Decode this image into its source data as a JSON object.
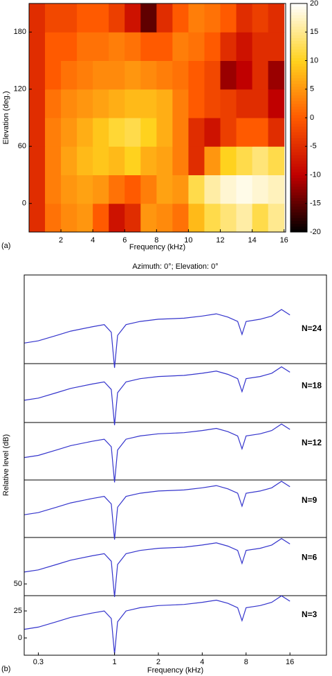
{
  "chart_data": [
    {
      "type": "heatmap",
      "panel_label": "(a)",
      "xlabel": "Frequency (kHz)",
      "ylabel": "Elevation (deg.)",
      "xlim": [
        0,
        16.1
      ],
      "xticks": [
        2,
        4,
        6,
        8,
        10,
        12,
        14,
        16
      ],
      "ylim": [
        -30,
        210
      ],
      "yticks": [
        0,
        60,
        120,
        180
      ],
      "xbins": [
        0,
        1,
        2,
        3,
        4,
        5,
        6,
        7,
        8,
        9,
        10,
        11,
        12,
        13,
        14,
        15,
        16
      ],
      "ybins": [
        -30,
        0,
        30,
        60,
        90,
        120,
        150,
        180,
        210
      ],
      "values": [
        [
          -5,
          2,
          4,
          5,
          0,
          -8,
          -5,
          5,
          4,
          2,
          8,
          12,
          14,
          16,
          12,
          15
        ],
        [
          -5,
          3,
          5,
          6,
          5,
          2,
          0,
          3,
          6,
          5,
          12,
          16,
          18,
          19,
          18,
          17
        ],
        [
          -5,
          3,
          6,
          8,
          9,
          8,
          10,
          7,
          6,
          3,
          -5,
          5,
          10,
          12,
          14,
          12
        ],
        [
          -5,
          3,
          5,
          7,
          9,
          11,
          12,
          10,
          7,
          3,
          -5,
          -8,
          -3,
          0,
          0,
          -5
        ],
        [
          -5,
          2,
          4,
          5,
          6,
          7,
          8,
          8,
          7,
          3,
          0,
          -2,
          -3,
          -5,
          -5,
          -10
        ],
        [
          -5,
          0,
          2,
          3,
          4,
          4,
          5,
          4,
          3,
          2,
          0,
          -2,
          -12,
          -10,
          -5,
          -12
        ],
        [
          -5,
          0,
          0,
          2,
          2,
          3,
          2,
          0,
          0,
          3,
          2,
          0,
          -5,
          -8,
          -5,
          -5
        ],
        [
          -5,
          -2,
          -2,
          0,
          0,
          -3,
          -8,
          -15,
          -5,
          0,
          3,
          2,
          0,
          -5,
          -3,
          -5
        ]
      ],
      "clim": [
        -20,
        20
      ],
      "cticks": [
        20,
        15,
        10,
        5,
        0,
        -5,
        -10,
        -15,
        -20
      ],
      "colormap": [
        "#000000",
        "#c00000",
        "#ff5a00",
        "#ffd21e",
        "#ffffff"
      ]
    },
    {
      "type": "line",
      "panel_label": "(b)",
      "title": "Azimuth: 0°; Elevation: 0°",
      "xlabel": "Frequency (kHz)",
      "ylabel": "Relative level (dB)",
      "xscale": "log",
      "xlim": [
        0.24,
        28.5
      ],
      "xticks": [
        0.3,
        1,
        2,
        4,
        8,
        16
      ],
      "ylim": [
        -16,
        336
      ],
      "yticks": [
        0,
        25,
        50
      ],
      "x": [
        0.24,
        0.3,
        0.4,
        0.5,
        0.7,
        0.85,
        0.95,
        1.0,
        1.05,
        1.2,
        1.5,
        2,
        3,
        4,
        5,
        6,
        7,
        7.5,
        8,
        10,
        12,
        14,
        16
      ],
      "series": [
        {
          "name": "N=24",
          "color": "#3333cc",
          "values": [
            273,
            275,
            280,
            284,
            288,
            290,
            283,
            250,
            280,
            290,
            293,
            295,
            296,
            298,
            300,
            297,
            293,
            281,
            293,
            295,
            298,
            304,
            299
          ]
        },
        {
          "name": "N=18",
          "color": "#3333cc",
          "values": [
            220,
            222,
            227,
            231,
            235,
            237,
            230,
            197,
            227,
            237,
            240,
            242,
            243,
            245,
            247,
            244,
            240,
            228,
            240,
            242,
            245,
            251,
            246
          ]
        },
        {
          "name": "N=12",
          "color": "#3333cc",
          "values": [
            167,
            169,
            174,
            178,
            182,
            184,
            177,
            144,
            174,
            184,
            187,
            189,
            190,
            192,
            194,
            191,
            187,
            175,
            187,
            189,
            192,
            198,
            193
          ]
        },
        {
          "name": "N=9",
          "color": "#3333cc",
          "values": [
            114,
            116,
            121,
            125,
            129,
            131,
            124,
            91,
            121,
            131,
            134,
            136,
            137,
            139,
            141,
            138,
            134,
            122,
            134,
            136,
            139,
            145,
            140
          ]
        },
        {
          "name": "N=6",
          "color": "#3333cc",
          "values": [
            61,
            63,
            68,
            72,
            76,
            78,
            71,
            38,
            68,
            78,
            81,
            83,
            84,
            86,
            88,
            85,
            81,
            69,
            81,
            83,
            86,
            92,
            87
          ]
        },
        {
          "name": "N=3",
          "color": "#3333cc",
          "values": [
            8,
            10,
            15,
            19,
            23,
            25,
            18,
            -15,
            15,
            25,
            28,
            30,
            31,
            33,
            35,
            32,
            28,
            16,
            28,
            30,
            33,
            39,
            34
          ]
        }
      ]
    }
  ]
}
